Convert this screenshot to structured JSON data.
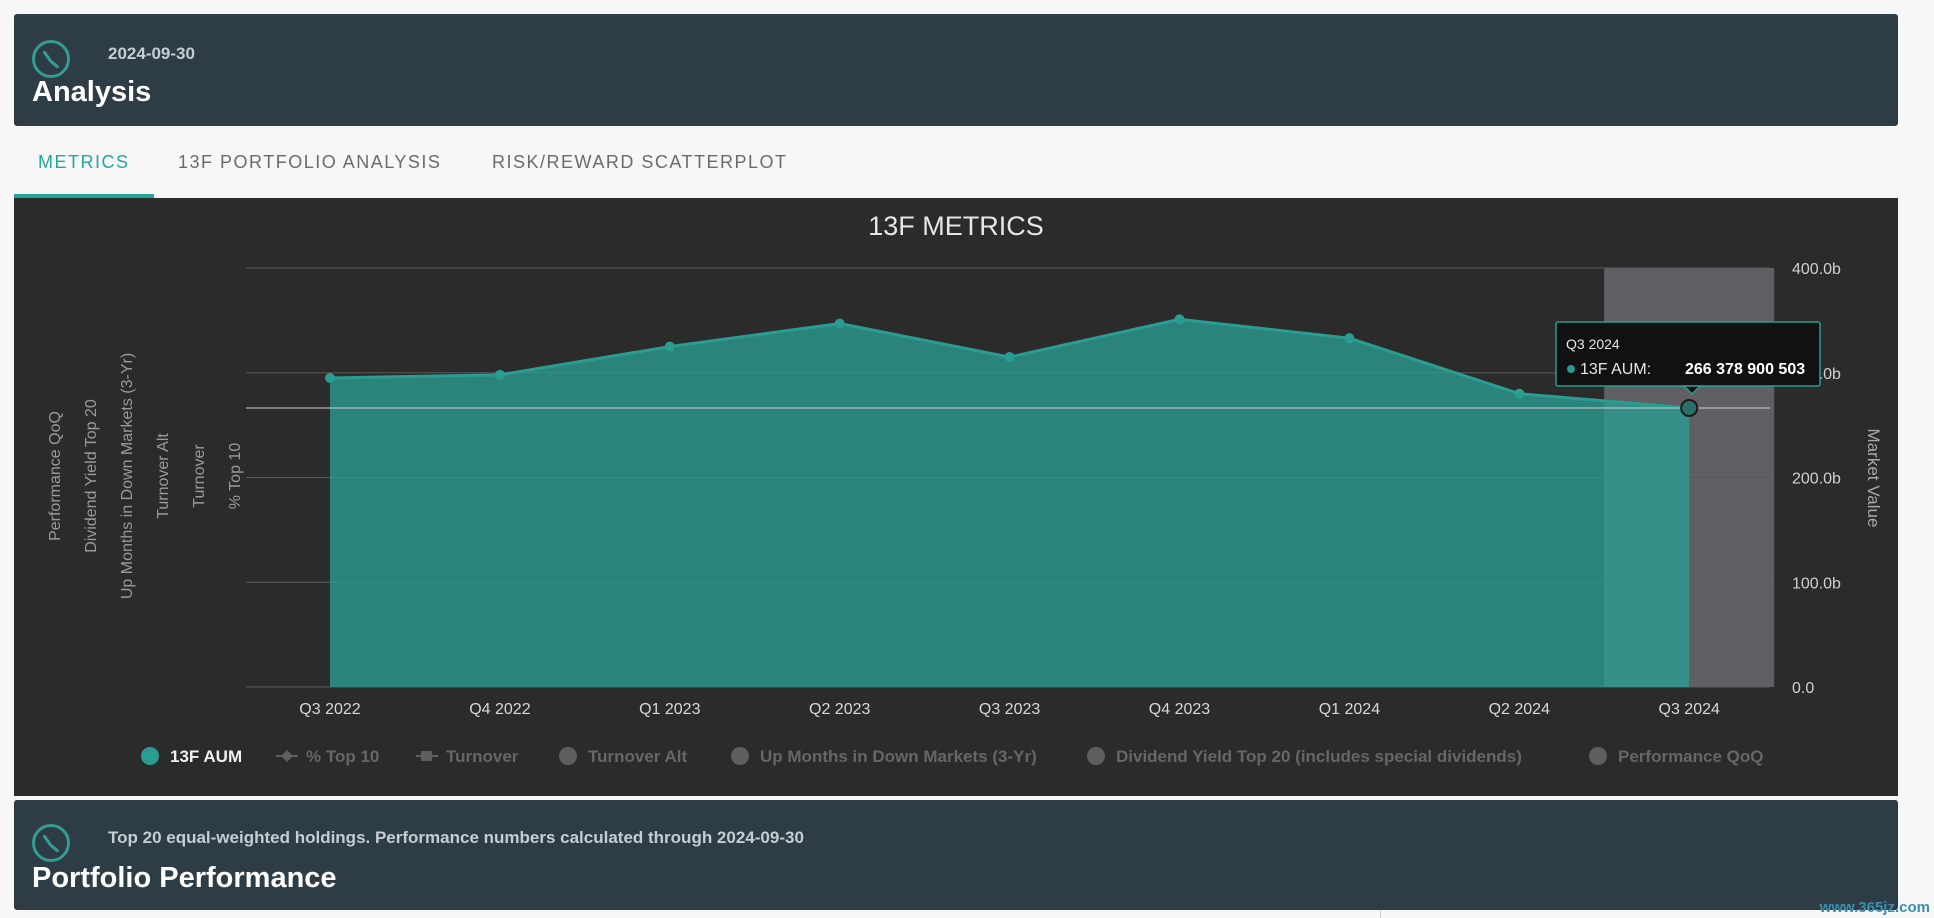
{
  "header": {
    "date": "2024-09-30",
    "title": "Analysis",
    "icon": "clock-icon"
  },
  "tabs": [
    {
      "label": "METRICS",
      "active": true
    },
    {
      "label": "13F PORTFOLIO ANALYSIS",
      "active": false
    },
    {
      "label": "RISK/REWARD SCATTERPLOT",
      "active": false
    }
  ],
  "chart": {
    "title": "13F METRICS",
    "right_axis_label": "Market Value",
    "left_axis_labels": [
      "Performance QoQ",
      "Dividend Yield Top 20",
      "Up Months in Down Markets (3-Yr)",
      "Turnover Alt",
      "Turnover",
      "% Top 10"
    ],
    "tooltip": {
      "period": "Q3 2024",
      "series": "13F AUM:",
      "value": "266 378 900 503"
    },
    "legend": [
      {
        "label": "13F AUM",
        "active": true,
        "symbol": "circle"
      },
      {
        "label": "% Top 10",
        "active": false,
        "symbol": "line-diamond"
      },
      {
        "label": "Turnover",
        "active": false,
        "symbol": "line-square"
      },
      {
        "label": "Turnover Alt",
        "active": false,
        "symbol": "circle"
      },
      {
        "label": "Up Months in Down Markets (3-Yr)",
        "active": false,
        "symbol": "circle"
      },
      {
        "label": "Dividend Yield Top 20 (includes special dividends)",
        "active": false,
        "symbol": "circle"
      },
      {
        "label": "Performance QoQ",
        "active": false,
        "symbol": "circle"
      }
    ],
    "colors": {
      "series": "#2a9d93",
      "background": "#2b2b2b",
      "grid": "#555555",
      "highlight": "#6a6a6e"
    }
  },
  "chart_data": {
    "type": "area",
    "title": "13F METRICS",
    "categories": [
      "Q3 2022",
      "Q4 2022",
      "Q1 2023",
      "Q2 2023",
      "Q3 2023",
      "Q4 2023",
      "Q1 2024",
      "Q2 2024",
      "Q3 2024"
    ],
    "series": [
      {
        "name": "13F AUM",
        "values": [
          295,
          298,
          325,
          347,
          315,
          351,
          333,
          280,
          266.38
        ]
      }
    ],
    "y_right": {
      "label": "Market Value",
      "ticks": [
        "0.0",
        "100.0b",
        "200.0b",
        "300.0b",
        "400.0b"
      ],
      "lim": [
        0,
        400
      ]
    },
    "highlight_category": "Q3 2024",
    "grid": true,
    "legend_position": "bottom"
  },
  "footer_header": {
    "subtitle": "Top 20 equal-weighted holdings. Performance numbers calculated through 2024-09-30",
    "title": "Portfolio Performance",
    "icon": "clock-icon"
  },
  "watermark": "www.365jz.com"
}
